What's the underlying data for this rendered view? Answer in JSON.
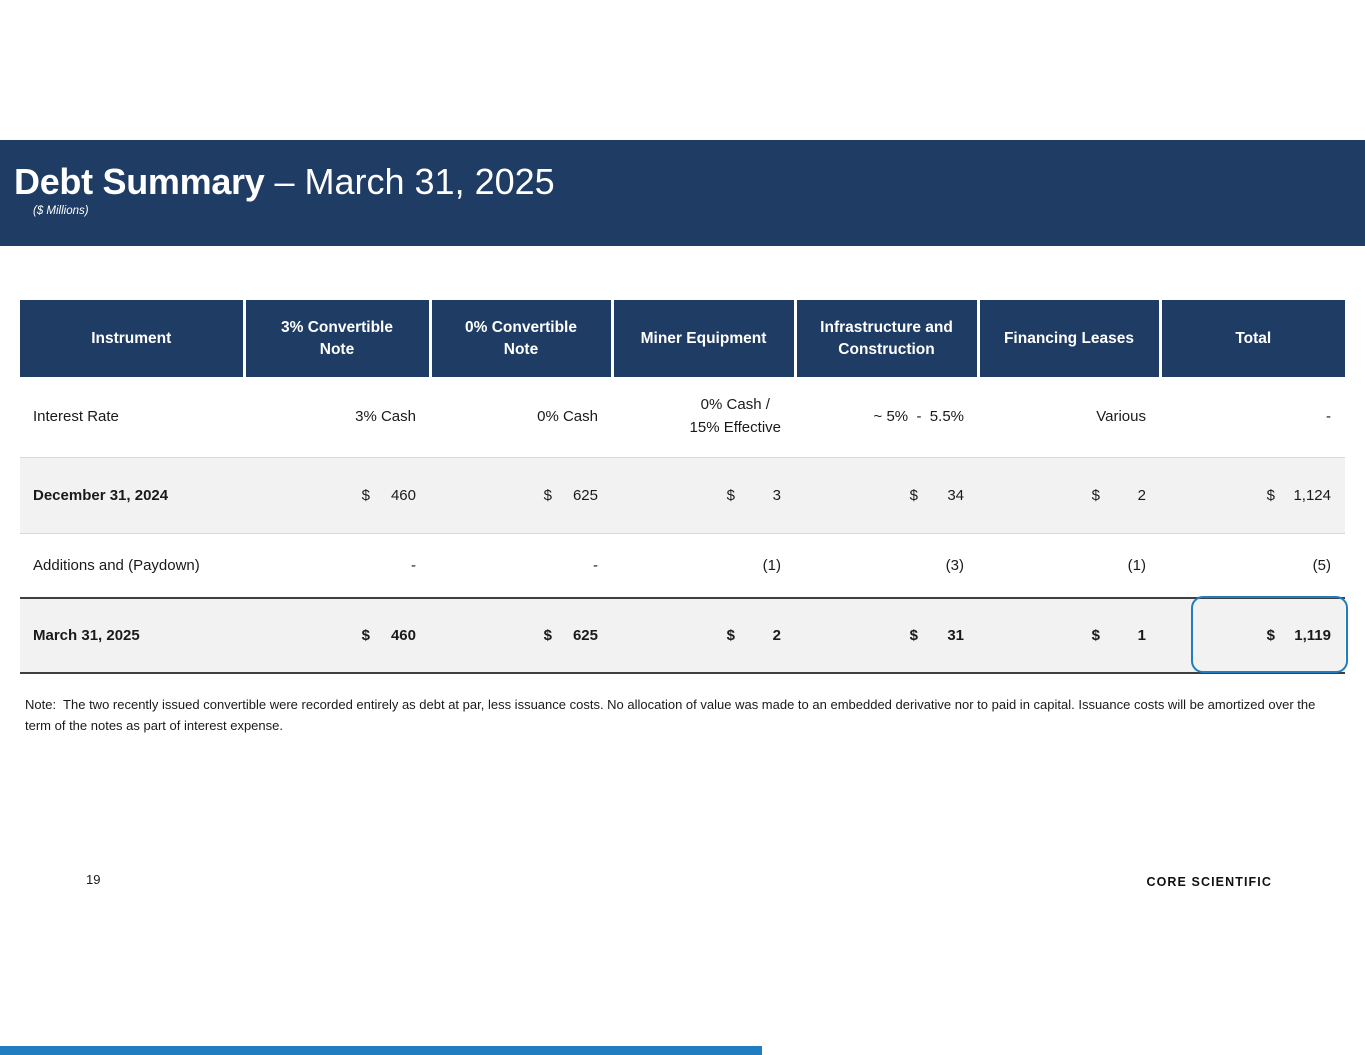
{
  "colors": {
    "navy": "#1F3C64",
    "accent_blue": "#1F7DC0",
    "row_shade": "#F2F2F2",
    "dark_rule": "#3F3F3F",
    "light_rule": "#D9D9D9"
  },
  "banner": {
    "title_bold": "Debt Summary",
    "title_regular": " – March 31, 2025",
    "subtitle": "($ Millions)"
  },
  "table": {
    "columns": [
      "Instrument",
      "3% Convertible\nNote",
      "0% Convertible\nNote",
      "Miner Equipment",
      "Infrastructure and\nConstruction",
      "Financing Leases",
      "Total"
    ],
    "rows": [
      {
        "key": "interest-rate",
        "label": "Interest Rate",
        "bold": false,
        "cells": [
          {
            "text": "3% Cash"
          },
          {
            "text": "0% Cash"
          },
          {
            "text": "0% Cash /\n15% Effective",
            "center": true
          },
          {
            "text": "~ 5%  -  5.5%"
          },
          {
            "text": "Various"
          },
          {
            "text": "-"
          }
        ]
      },
      {
        "key": "december-31-2024",
        "label": "December 31, 2024",
        "bold": true,
        "cells": [
          {
            "currency": "$",
            "amount": "460"
          },
          {
            "currency": "$",
            "amount": "625"
          },
          {
            "currency": "$",
            "amount": "3"
          },
          {
            "currency": "$",
            "amount": "34"
          },
          {
            "currency": "$",
            "amount": "2"
          },
          {
            "currency": "$",
            "amount": "1,124"
          }
        ]
      },
      {
        "key": "additions-paydown",
        "label": "Additions and (Paydown)",
        "bold": false,
        "cells": [
          {
            "text": "-"
          },
          {
            "text": "-"
          },
          {
            "text": "(1)"
          },
          {
            "text": "(3)"
          },
          {
            "text": "(1)"
          },
          {
            "text": "(5)"
          }
        ]
      },
      {
        "key": "march-31-2025",
        "label": "March 31, 2025",
        "bold": true,
        "cells": [
          {
            "currency": "$",
            "amount": "460"
          },
          {
            "currency": "$",
            "amount": "625"
          },
          {
            "currency": "$",
            "amount": "2"
          },
          {
            "currency": "$",
            "amount": "31"
          },
          {
            "currency": "$",
            "amount": "1"
          },
          {
            "currency": "$",
            "amount": "1,119"
          }
        ]
      }
    ]
  },
  "footnote": "Note:  The two recently issued convertible were recorded entirely as debt at par, less issuance costs. No allocation of value was made to an embedded derivative nor to paid in capital. Issuance costs will be amortized over the term of the notes as part of interest expense.",
  "footer": {
    "page_number": "19",
    "logo_text": "CORE SCIENTIFIC"
  }
}
